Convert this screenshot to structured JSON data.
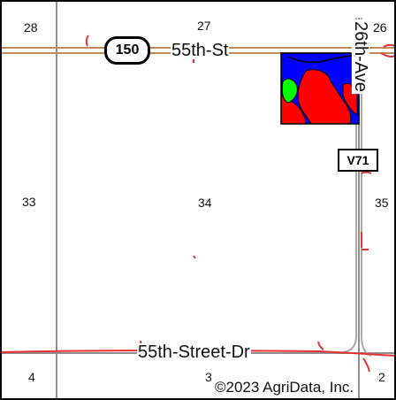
{
  "map": {
    "sections": {
      "s28": "28",
      "s27": "27",
      "s26": "26",
      "s33": "33",
      "s34": "34",
      "s35": "35",
      "s4": "4",
      "s3": "3",
      "s2": "2"
    },
    "roads": {
      "street_north": "55th-St",
      "avenue_east": "26th-Ave",
      "street_south": "55th-Street-Dr"
    },
    "shields": {
      "state_route": "150",
      "county_route": "V71"
    },
    "copyright": "©2023 AgriData, Inc.",
    "colors": {
      "road_line": "#c08a5a",
      "boundary_line": "#888888",
      "parcel_red": "#ff0000",
      "parcel_blue": "#0000ff",
      "parcel_green": "#00ff00",
      "red_marks": "#e83030"
    }
  }
}
